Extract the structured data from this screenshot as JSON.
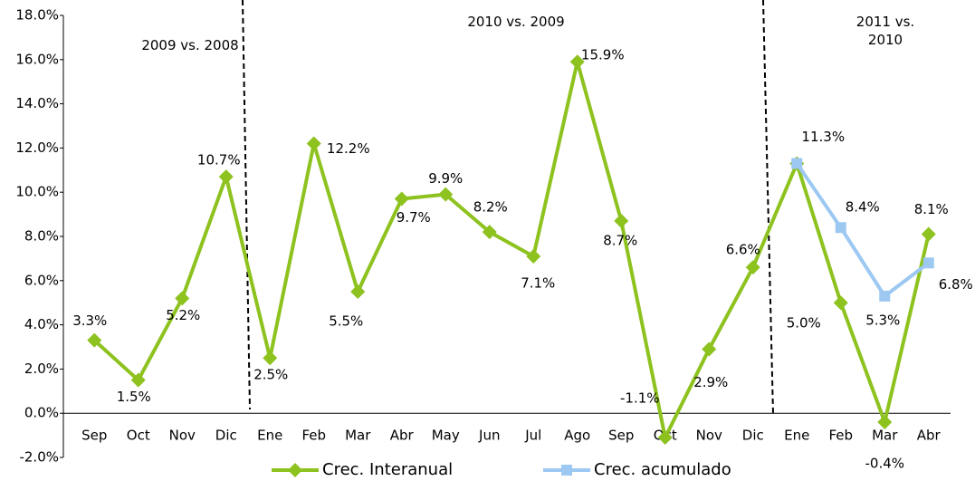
{
  "chart_data": {
    "type": "line",
    "categories": [
      "Sep",
      "Oct",
      "Nov",
      "Dic",
      "Ene",
      "Feb",
      "Mar",
      "Abr",
      "May",
      "Jun",
      "Jul",
      "Ago",
      "Sep",
      "Oct",
      "Nov",
      "Dic",
      "Ene",
      "Feb",
      "Mar",
      "Abr"
    ],
    "series": [
      {
        "name": "Crec. Interanual",
        "color": "#8dc21f",
        "marker": "diamond",
        "values": [
          3.3,
          1.5,
          5.2,
          10.7,
          2.5,
          12.2,
          5.5,
          9.7,
          9.9,
          8.2,
          7.1,
          15.9,
          8.7,
          -1.1,
          2.9,
          6.6,
          11.3,
          5.0,
          -0.4,
          8.1
        ],
        "value_labels": [
          "3.3%",
          "1.5%",
          "5.2%",
          "10.7%",
          "2.5%",
          "12.2%",
          "5.5%",
          "9.7%",
          "9.9%",
          "8.2%",
          "7.1%",
          "15.9%",
          "8.7%",
          "-1.1%",
          "2.9%",
          "6.6%",
          "11.3%",
          "5.0%",
          "-0.4%",
          "8.1%"
        ]
      },
      {
        "name": "Crec. acumulado",
        "color": "#9cc8f2",
        "marker": "square",
        "values": [
          null,
          null,
          null,
          null,
          null,
          null,
          null,
          null,
          null,
          null,
          null,
          null,
          null,
          null,
          null,
          null,
          11.3,
          8.4,
          5.3,
          6.8
        ],
        "value_labels": [
          null,
          null,
          null,
          null,
          null,
          null,
          null,
          null,
          null,
          null,
          null,
          null,
          null,
          null,
          null,
          null,
          null,
          "8.4%",
          "5.3%",
          "6.8%"
        ]
      }
    ],
    "ylim": [
      -2,
      18
    ],
    "yticks": [
      {
        "value": -2,
        "label": "-2.0%"
      },
      {
        "value": 0,
        "label": "0.0%"
      },
      {
        "value": 2,
        "label": "2.0%"
      },
      {
        "value": 4,
        "label": "4.0%"
      },
      {
        "value": 6,
        "label": "6.0%"
      },
      {
        "value": 8,
        "label": "8.0%"
      },
      {
        "value": 10,
        "label": "10.0%"
      },
      {
        "value": 12,
        "label": "12.0%"
      },
      {
        "value": 14,
        "label": "14.0%"
      },
      {
        "value": 16,
        "label": "16.0%"
      },
      {
        "value": 18,
        "label": "18.0%"
      }
    ],
    "annotations": [
      "2009 vs. 2008",
      "2010 vs. 2009",
      "2011 vs. 2010"
    ],
    "legend": "bottom"
  }
}
